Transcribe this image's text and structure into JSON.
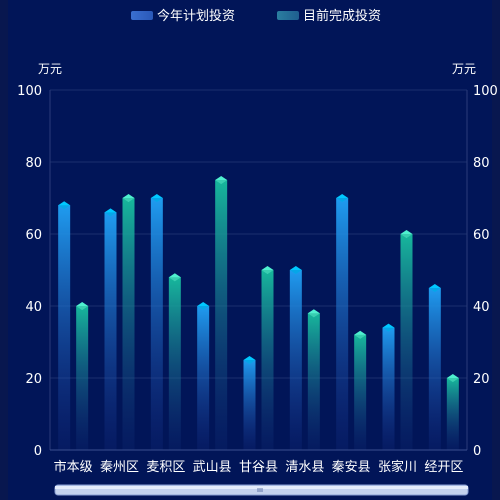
{
  "legend": {
    "planned_label": "今年计划投资",
    "completed_label": "目前完成投资"
  },
  "axes": {
    "left_unit": "万元",
    "right_unit": "万元"
  },
  "colors": {
    "planned_top": "#1fa3ff",
    "planned_cap": "#00c8ff",
    "completed_top": "#1bc0a0",
    "completed_cap": "#4ff0cf",
    "background": "#011558"
  },
  "chart_data": {
    "type": "bar",
    "categories": [
      "市本级",
      "秦州区",
      "麦积区",
      "武山县",
      "甘谷县",
      "清水县",
      "秦安县",
      "张家川",
      "经开区"
    ],
    "series": [
      {
        "name": "今年计划投资",
        "values": [
          68,
          66,
          70,
          40,
          25,
          50,
          70,
          34,
          45
        ]
      },
      {
        "name": "目前完成投资",
        "values": [
          40,
          70,
          48,
          75,
          50,
          38,
          32,
          60,
          20
        ]
      }
    ],
    "ylim": [
      0,
      100
    ],
    "yticks": [
      0,
      20,
      40,
      60,
      80,
      100
    ],
    "legend_position": "top-center",
    "grid": true,
    "datazoom_slider": true
  }
}
